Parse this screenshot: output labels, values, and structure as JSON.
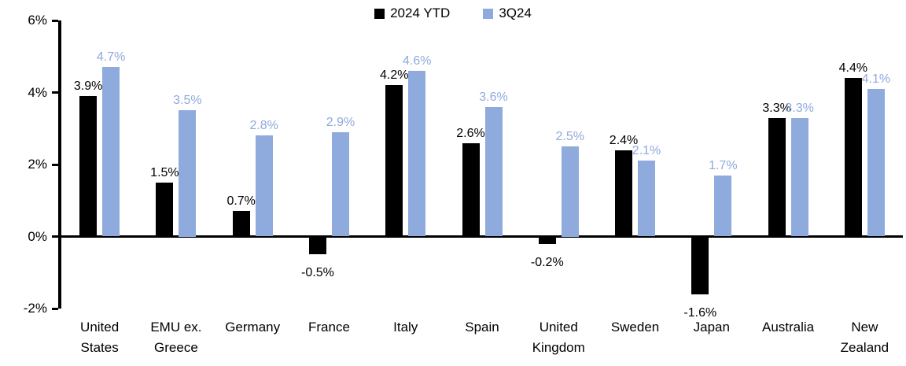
{
  "chart_data": {
    "type": "bar",
    "title": "",
    "xlabel": "",
    "ylabel": "",
    "categories": [
      "United States",
      "EMU ex. Greece",
      "Germany",
      "France",
      "Italy",
      "Spain",
      "United Kingdom",
      "Sweden",
      "Japan",
      "Australia",
      "New Zealand"
    ],
    "series": [
      {
        "name": "2024 YTD",
        "color": "#000000",
        "values": [
          3.9,
          1.5,
          0.7,
          -0.5,
          4.2,
          2.6,
          -0.2,
          2.4,
          -1.6,
          3.3,
          4.4
        ],
        "labels": [
          "3.9%",
          "1.5%",
          "0.7%",
          "-0.5%",
          "4.2%",
          "2.6%",
          "-0.2%",
          "2.4%",
          "-1.6%",
          "3.3%",
          "4.4%"
        ]
      },
      {
        "name": "3Q24",
        "color": "#8FAADC",
        "values": [
          4.7,
          3.5,
          2.8,
          2.9,
          4.6,
          3.6,
          2.5,
          2.1,
          1.7,
          3.3,
          4.1
        ],
        "labels": [
          "4.7%",
          "3.5%",
          "2.8%",
          "2.9%",
          "4.6%",
          "3.6%",
          "2.5%",
          "2.1%",
          "1.7%",
          "3.3%",
          "4.1%"
        ]
      }
    ],
    "ylim": [
      -2,
      6
    ],
    "yticks": [
      6,
      4,
      2,
      0,
      -2
    ],
    "ytick_labels": [
      "6%",
      "4%",
      "2%",
      "0%",
      "-2%"
    ],
    "grid": false,
    "legend_position": "top-center",
    "data_labels": true,
    "background": "#ffffff"
  }
}
